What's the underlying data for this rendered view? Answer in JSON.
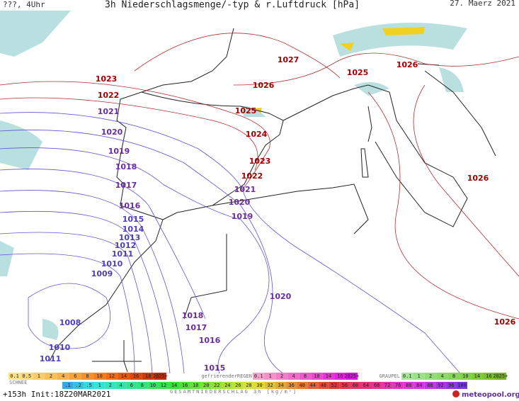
{
  "header": {
    "left": "???, 4Uhr",
    "title": "3h Niederschlagsmenge/-typ & r.Luftdruck [hPa]",
    "date": "27. Maerz 2021"
  },
  "isobars": [
    {
      "label": "1027",
      "color": "#a00000"
    },
    {
      "label": "1026",
      "color": "#a00000"
    },
    {
      "label": "1025",
      "color": "#a00000"
    },
    {
      "label": "1026",
      "color": "#a00000"
    },
    {
      "label": "1023",
      "color": "#a00000"
    },
    {
      "label": "1022",
      "color": "#a00000"
    },
    {
      "label": "1021",
      "color": "#6a2ca0"
    },
    {
      "label": "1025",
      "color": "#a00000"
    },
    {
      "label": "1024",
      "color": "#a00000"
    },
    {
      "label": "1020",
      "color": "#6a2ca0"
    },
    {
      "label": "1019",
      "color": "#6a2ca0"
    },
    {
      "label": "1023",
      "color": "#a00000"
    },
    {
      "label": "1018",
      "color": "#6a2ca0"
    },
    {
      "label": "1022",
      "color": "#a00000"
    },
    {
      "label": "1017",
      "color": "#6a2ca0"
    },
    {
      "label": "1021",
      "color": "#6a2ca0"
    },
    {
      "label": "1026",
      "color": "#a00000"
    },
    {
      "label": "1016",
      "color": "#6a2ca0"
    },
    {
      "label": "1020",
      "color": "#6a2ca0"
    },
    {
      "label": "1019",
      "color": "#6a2ca0"
    },
    {
      "label": "1015",
      "color": "#4b3fc0"
    },
    {
      "label": "1014",
      "color": "#4b3fc0"
    },
    {
      "label": "1013",
      "color": "#4b3fc0"
    },
    {
      "label": "1012",
      "color": "#4b3fc0"
    },
    {
      "label": "1011",
      "color": "#4b3fc0"
    },
    {
      "label": "1010",
      "color": "#4b3fc0"
    },
    {
      "label": "1009",
      "color": "#4b3fc0"
    },
    {
      "label": "1020",
      "color": "#6a2ca0"
    },
    {
      "label": "1018",
      "color": "#6a2ca0"
    },
    {
      "label": "1008",
      "color": "#4b3fc0"
    },
    {
      "label": "1017",
      "color": "#6a2ca0"
    },
    {
      "label": "1026",
      "color": "#a00000"
    },
    {
      "label": "1016",
      "color": "#6a2ca0"
    },
    {
      "label": "1010",
      "color": "#4b3fc0"
    },
    {
      "label": "1011",
      "color": "#4b3fc0"
    },
    {
      "label": "1015",
      "color": "#6a2ca0"
    }
  ],
  "legend": {
    "snow": {
      "title": "SCHNEE",
      "steps": [
        "0.1",
        "0.5",
        "1",
        "2",
        "4",
        "6",
        "8",
        "10",
        "12",
        "14",
        "16",
        "18",
        "2025+"
      ]
    },
    "freezing_rain": {
      "title": "gefrierenderREGEN",
      "steps": [
        "0.1",
        "1",
        "2",
        "4",
        "8",
        "10",
        "14",
        "16",
        "2025+"
      ]
    },
    "graupel": {
      "title": "GRAUPEL",
      "steps": [
        "0.1",
        "1",
        "2",
        "4",
        "8",
        "10",
        "14",
        "16",
        "2025+"
      ]
    },
    "total": {
      "title": "GESAMTNIEDERSCHLAG 3h [kg/m²]",
      "steps": [
        ".1",
        ".2",
        ".5",
        "1",
        "2",
        "4",
        "6",
        "8",
        "10",
        "12",
        "14",
        "16",
        "18",
        "20",
        "22",
        "24",
        "26",
        "28",
        "30",
        "32",
        "34",
        "36",
        "40",
        "44",
        "48",
        "52",
        "56",
        "60",
        "64",
        "68",
        "72",
        "76",
        "80",
        "84",
        "88",
        "92",
        "96",
        "100"
      ]
    }
  },
  "footer": {
    "lead": "+153h Init:18Z20MAR2021",
    "brand": "meteopool.org"
  }
}
